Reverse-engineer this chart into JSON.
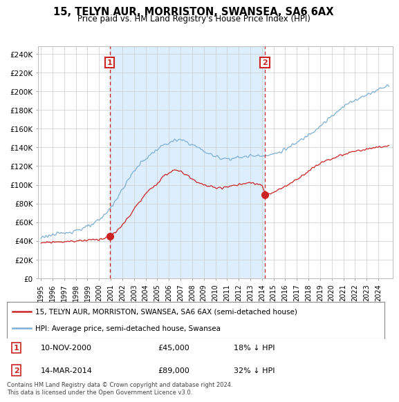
{
  "title": "15, TELYN AUR, MORRISTON, SWANSEA, SA6 6AX",
  "subtitle": "Price paid vs. HM Land Registry's House Price Index (HPI)",
  "yticks": [
    0,
    20000,
    40000,
    60000,
    80000,
    100000,
    120000,
    140000,
    160000,
    180000,
    200000,
    220000,
    240000
  ],
  "ylim": [
    0,
    248000
  ],
  "hpi_color": "#7bafd4",
  "price_color": "#cc2222",
  "shade_color": "#ddeeff",
  "marker1_month": 71,
  "marker2_month": 231,
  "marker1_price": 45000,
  "marker2_price": 89000,
  "legend_line1": "15, TELYN AUR, MORRISTON, SWANSEA, SA6 6AX (semi-detached house)",
  "legend_line2": "HPI: Average price, semi-detached house, Swansea",
  "footer": "Contains HM Land Registry data © Crown copyright and database right 2024.\nThis data is licensed under the Open Government Licence v3.0.",
  "bg_color": "#ffffff",
  "grid_color": "#cccccc",
  "n_months": 360,
  "start_year": 1995,
  "hpi_keypoints_months": [
    0,
    6,
    12,
    18,
    24,
    30,
    36,
    42,
    48,
    54,
    60,
    66,
    72,
    78,
    84,
    90,
    96,
    102,
    108,
    114,
    120,
    126,
    132,
    138,
    144,
    150,
    156,
    162,
    168,
    174,
    180,
    186,
    192,
    198,
    204,
    210,
    216,
    222,
    228,
    234,
    240,
    246,
    252,
    258,
    264,
    270,
    276,
    282,
    288,
    294,
    300,
    306,
    312,
    318,
    324,
    330,
    336,
    342,
    348,
    354,
    359
  ],
  "hpi_keypoints_vals": [
    44000,
    45500,
    46500,
    47200,
    48500,
    50000,
    51500,
    53000,
    55000,
    58000,
    62000,
    68000,
    76000,
    85000,
    95000,
    105000,
    115000,
    122000,
    128000,
    133000,
    138000,
    142000,
    145000,
    147000,
    148000,
    146000,
    143000,
    140000,
    136000,
    133000,
    130000,
    129000,
    128000,
    128500,
    129000,
    130000,
    131000,
    131500,
    132000,
    131000,
    133000,
    135000,
    138000,
    141000,
    145000,
    149000,
    154000,
    158000,
    163000,
    168000,
    173000,
    178000,
    183000,
    188000,
    191000,
    193000,
    196000,
    199000,
    202000,
    205000,
    207000
  ],
  "prop_keypoints_months": [
    0,
    6,
    12,
    18,
    24,
    30,
    36,
    42,
    48,
    54,
    60,
    66,
    71,
    78,
    84,
    90,
    96,
    102,
    108,
    114,
    120,
    126,
    132,
    138,
    144,
    150,
    156,
    162,
    168,
    174,
    180,
    186,
    192,
    198,
    204,
    210,
    216,
    222,
    228,
    231,
    234,
    240,
    246,
    252,
    258,
    264,
    270,
    276,
    282,
    288,
    294,
    300,
    306,
    312,
    318,
    324,
    330,
    336,
    342,
    348,
    354,
    359
  ],
  "prop_keypoints_vals": [
    38000,
    38500,
    39000,
    39000,
    39500,
    39500,
    40000,
    40500,
    41000,
    41500,
    42000,
    43000,
    45000,
    50000,
    57000,
    65000,
    74000,
    82000,
    90000,
    96000,
    102000,
    108000,
    113000,
    116000,
    114000,
    111000,
    106000,
    103000,
    100000,
    98000,
    97000,
    97000,
    98000,
    99000,
    100000,
    101000,
    102000,
    101000,
    100000,
    89000,
    90000,
    92000,
    95000,
    98000,
    102000,
    106000,
    110000,
    115000,
    119000,
    123000,
    126000,
    128000,
    130000,
    132000,
    134000,
    136000,
    137000,
    138000,
    139000,
    140000,
    141000,
    142000
  ]
}
